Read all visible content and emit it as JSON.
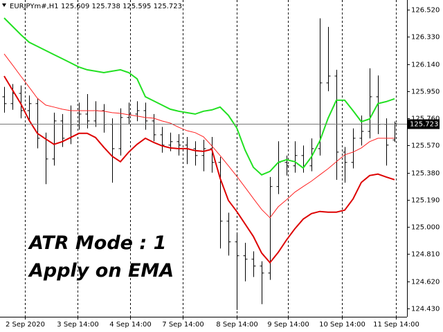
{
  "chart_data": {
    "type": "ohlc",
    "symbol": "EURJPYm#,H1",
    "header_values": "125.609 125.738 125.595 125.723",
    "annotations": [
      "ATR Mode : 1",
      "Apply on EMA"
    ],
    "x": [
      0,
      1,
      2,
      3,
      4,
      5,
      6,
      7,
      8,
      9,
      10,
      11,
      12,
      13,
      14,
      15,
      16,
      17,
      18,
      19,
      20,
      21,
      22,
      23,
      24,
      25,
      26,
      27,
      28,
      29,
      30,
      31,
      32,
      33,
      34,
      35,
      36,
      37,
      38,
      39,
      40,
      41,
      42,
      43,
      44,
      45,
      46,
      47
    ],
    "open": [
      125.911,
      125.863,
      125.935,
      125.814,
      125.863,
      125.621,
      125.476,
      125.742,
      125.621,
      125.718,
      125.79,
      125.742,
      125.814,
      125.718,
      125.548,
      125.766,
      125.79,
      125.814,
      125.742,
      125.645,
      125.573,
      125.597,
      125.573,
      125.548,
      125.5,
      125.548,
      125.452,
      125.041,
      124.896,
      124.799,
      124.775,
      124.727,
      124.678,
      125.283,
      125.452,
      125.428,
      125.5,
      125.428,
      125.548,
      126.008,
      126.056,
      125.524,
      125.452,
      125.621,
      125.669,
      125.911,
      125.718,
      125.609
    ],
    "high": [
      125.98,
      126.0,
      125.99,
      125.92,
      125.9,
      125.66,
      125.8,
      125.79,
      125.85,
      125.87,
      125.93,
      125.88,
      125.86,
      125.76,
      125.83,
      125.87,
      125.88,
      125.87,
      125.79,
      125.7,
      125.66,
      125.65,
      125.63,
      125.6,
      125.61,
      125.63,
      125.49,
      125.1,
      124.95,
      124.89,
      124.83,
      124.76,
      125.35,
      125.6,
      125.5,
      125.6,
      125.57,
      125.62,
      126.46,
      126.4,
      126.1,
      125.56,
      125.69,
      125.78,
      126.11,
      126.06,
      125.76,
      125.738
    ],
    "low": [
      125.8,
      125.82,
      125.76,
      125.75,
      125.55,
      125.3,
      125.43,
      125.56,
      125.58,
      125.68,
      125.69,
      125.7,
      125.66,
      125.31,
      125.5,
      125.72,
      125.74,
      125.68,
      125.6,
      125.52,
      125.53,
      125.5,
      125.44,
      125.43,
      125.39,
      125.38,
      124.85,
      124.8,
      124.42,
      124.62,
      124.65,
      124.46,
      124.63,
      125.23,
      125.36,
      125.38,
      125.38,
      125.39,
      125.5,
      125.95,
      125.33,
      125.31,
      125.41,
      125.57,
      125.62,
      125.65,
      125.43,
      125.595
    ],
    "close": [
      125.863,
      125.935,
      125.814,
      125.863,
      125.621,
      125.476,
      125.742,
      125.621,
      125.718,
      125.79,
      125.742,
      125.814,
      125.718,
      125.548,
      125.766,
      125.79,
      125.814,
      125.742,
      125.645,
      125.573,
      125.597,
      125.573,
      125.548,
      125.5,
      125.548,
      125.452,
      125.041,
      124.896,
      124.799,
      124.775,
      124.727,
      124.678,
      125.283,
      125.452,
      125.428,
      125.5,
      125.428,
      125.548,
      126.008,
      126.056,
      125.524,
      125.452,
      125.621,
      125.669,
      125.911,
      125.718,
      125.573,
      125.723
    ],
    "bar_color": "#000000",
    "lines": [
      {
        "color": "#22e022",
        "width": 2,
        "values": [
          126.462,
          126.404,
          126.346,
          126.293,
          126.264,
          126.235,
          126.206,
          126.177,
          126.148,
          126.119,
          126.1,
          126.09,
          126.08,
          126.09,
          126.1,
          126.08,
          126.037,
          125.911,
          125.882,
          125.853,
          125.824,
          125.81,
          125.8,
          125.79,
          125.81,
          125.819,
          125.839,
          125.781,
          125.694,
          125.539,
          125.418,
          125.365,
          125.389,
          125.452,
          125.471,
          125.457,
          125.413,
          125.491,
          125.602,
          125.761,
          125.887,
          125.887,
          125.814,
          125.737,
          125.756,
          125.863,
          125.877,
          125.897
        ]
      },
      {
        "color": "#dd0000",
        "width": 2,
        "values": [
          126.056,
          125.959,
          125.863,
          125.747,
          125.655,
          125.616,
          125.578,
          125.597,
          125.626,
          125.655,
          125.655,
          125.626,
          125.558,
          125.495,
          125.457,
          125.524,
          125.578,
          125.621,
          125.592,
          125.568,
          125.553,
          125.548,
          125.548,
          125.534,
          125.529,
          125.544,
          125.341,
          125.186,
          125.109,
          125.022,
          124.934,
          124.818,
          124.751,
          124.823,
          124.91,
          124.988,
          125.055,
          125.094,
          125.109,
          125.104,
          125.104,
          125.118,
          125.196,
          125.312,
          125.36,
          125.37,
          125.35,
          125.331
        ]
      },
      {
        "color": "#ff2020",
        "width": 1,
        "values": [
          126.211,
          126.134,
          126.056,
          125.979,
          125.901,
          125.853,
          125.839,
          125.824,
          125.814,
          125.814,
          125.814,
          125.814,
          125.81,
          125.8,
          125.795,
          125.785,
          125.776,
          125.766,
          125.761,
          125.742,
          125.727,
          125.698,
          125.674,
          125.66,
          125.631,
          125.568,
          125.5,
          125.428,
          125.355,
          125.278,
          125.2,
          125.123,
          125.065,
          125.142,
          125.191,
          125.244,
          125.283,
          125.321,
          125.365,
          125.408,
          125.457,
          125.505,
          125.524,
          125.553,
          125.597,
          125.621,
          125.621,
          125.621
        ]
      }
    ],
    "last_price": {
      "value": 125.723,
      "label": "125.723"
    },
    "xlim": [
      -0.5,
      48.5
    ],
    "xticks": [
      {
        "value": 2.5,
        "label": "2 Sep 2020"
      },
      {
        "value": 8.8,
        "label": "3 Sep 14:00"
      },
      {
        "value": 15.2,
        "label": "4 Sep 14:00"
      },
      {
        "value": 21.5,
        "label": "7 Sep 14:00"
      },
      {
        "value": 28,
        "label": "8 Sep 14:00"
      },
      {
        "value": 34.2,
        "label": "9 Sep 14:00"
      },
      {
        "value": 40.7,
        "label": "10 Sep 14:00"
      },
      {
        "value": 47.2,
        "label": "11 Sep 14:00"
      }
    ],
    "ylim": [
      124.372,
      126.588
    ],
    "yticks": [
      {
        "value": 126.52,
        "label": "126.520"
      },
      {
        "value": 126.33,
        "label": "126.330"
      },
      {
        "value": 126.14,
        "label": "126.140"
      },
      {
        "value": 125.95,
        "label": "125.950"
      },
      {
        "value": 125.76,
        "label": "125.760"
      },
      {
        "value": 125.57,
        "label": "125.570"
      },
      {
        "value": 125.38,
        "label": "125.380"
      },
      {
        "value": 125.19,
        "label": "125.190"
      },
      {
        "value": 125.0,
        "label": "125.000"
      },
      {
        "value": 124.81,
        "label": "124.810"
      },
      {
        "value": 124.62,
        "label": "124.620"
      },
      {
        "value": 124.43,
        "label": "124.430"
      }
    ],
    "grid": true
  }
}
